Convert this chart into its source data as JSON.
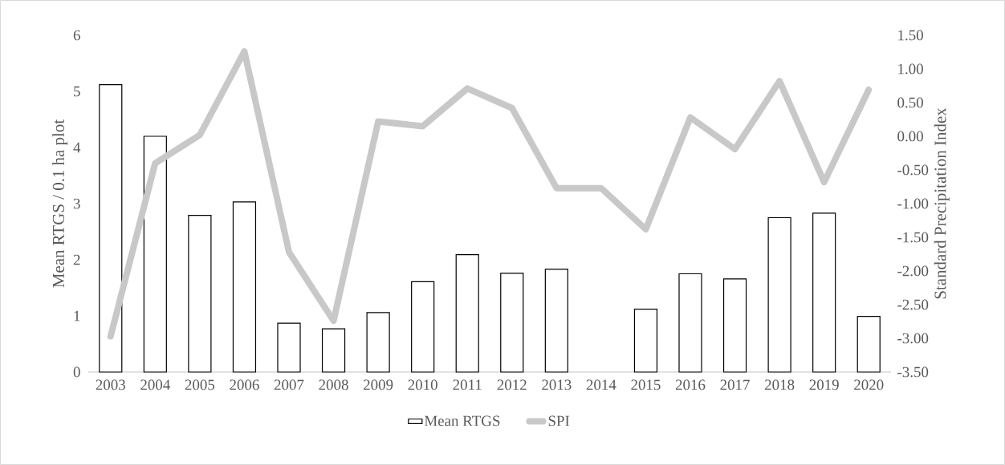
{
  "chart_data": {
    "type": "bar",
    "ylabel": "Mean RTGS / 0.1 ha plot",
    "y2label": "Standard Precipitation Index",
    "categories": [
      "2003",
      "2004",
      "2005",
      "2006",
      "2007",
      "2008",
      "2009",
      "2010",
      "2011",
      "2012",
      "2013",
      "2014",
      "2015",
      "2016",
      "2017",
      "2018",
      "2019",
      "2020"
    ],
    "series": [
      {
        "name": "Mean RTGS",
        "color": "#ffffff",
        "values": [
          5.12,
          4.2,
          2.79,
          3.03,
          0.87,
          0.77,
          1.06,
          1.61,
          2.09,
          1.76,
          1.83,
          null,
          1.12,
          1.75,
          1.66,
          2.75,
          2.83,
          0.99
        ]
      },
      {
        "name": "SPI",
        "type": "line",
        "axis": "y2",
        "color": "#c8c8c8",
        "values": [
          -2.97,
          -0.4,
          0.02,
          1.26,
          -1.72,
          -2.74,
          0.22,
          0.15,
          0.71,
          0.42,
          -0.77,
          -0.77,
          -1.38,
          0.28,
          -0.19,
          0.82,
          -0.68,
          0.69
        ]
      }
    ],
    "ylim": [
      0,
      6
    ],
    "yticks": [
      0,
      1,
      2,
      3,
      4,
      5,
      6
    ],
    "y2lim": [
      -3.5,
      1.5
    ],
    "y2ticks": [
      {
        "value": -3.5,
        "label": "-3.50"
      },
      {
        "value": -3,
        "label": "-3.00"
      },
      {
        "value": -2.5,
        "label": "-2.50"
      },
      {
        "value": -2,
        "label": "-2.00"
      },
      {
        "value": -1.5,
        "label": "-1.50"
      },
      {
        "value": -1,
        "label": "-1.00"
      },
      {
        "value": -0.5,
        "label": "-0.50"
      },
      {
        "value": 0,
        "label": "0.00"
      },
      {
        "value": 0.5,
        "label": "0.50"
      },
      {
        "value": 1,
        "label": "1.00"
      },
      {
        "value": 1.5,
        "label": "1.50"
      }
    ],
    "grid": false,
    "legend": "bottom",
    "marker": "none",
    "line_style": "solid"
  }
}
